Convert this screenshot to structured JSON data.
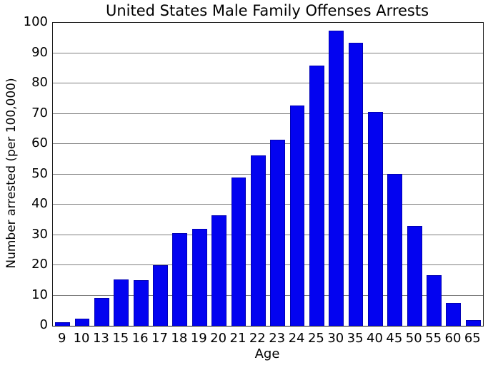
{
  "chart_data": {
    "type": "bar",
    "title": "United States Male Family Offenses Arrests",
    "xlabel": "Age",
    "ylabel": "Number arrested (per 100,000)",
    "categories": [
      "9",
      "10",
      "13",
      "15",
      "16",
      "17",
      "18",
      "19",
      "20",
      "21",
      "22",
      "23",
      "24",
      "25",
      "30",
      "35",
      "40",
      "45",
      "50",
      "55",
      "60",
      "65"
    ],
    "values": [
      1.1,
      2.3,
      9.2,
      15.2,
      15.0,
      20.0,
      30.6,
      32.0,
      36.5,
      48.9,
      56.3,
      61.5,
      72.7,
      86.0,
      97.5,
      93.5,
      70.5,
      50.2,
      32.9,
      16.6,
      7.6,
      2.0
    ],
    "ylim": [
      0,
      100
    ],
    "yticks": [
      0,
      10,
      20,
      30,
      40,
      50,
      60,
      70,
      80,
      90,
      100
    ],
    "grid": "horizontal",
    "legend": "none",
    "colors": {
      "bar_fill": "#0303f0",
      "bar_edge": "#0000b4",
      "gridline": "#7f7f7f",
      "spine": "#1a1a1a",
      "text": "#000000",
      "background": "#ffffff"
    }
  }
}
